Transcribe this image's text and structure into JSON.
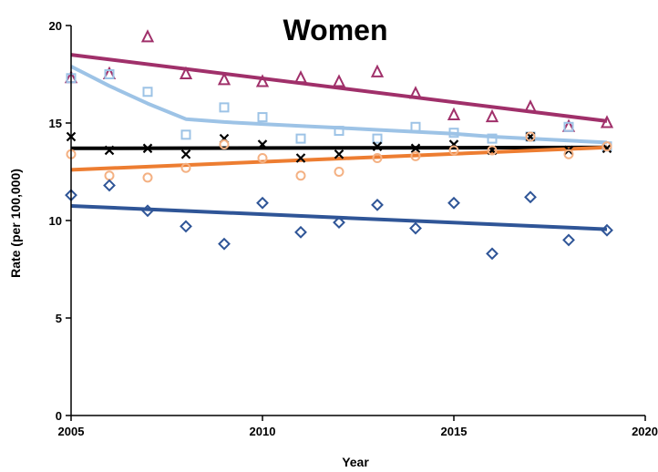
{
  "chart_data": {
    "type": "scatter",
    "title": "Women",
    "xlabel": "Year",
    "ylabel": "Rate (per 100,000)",
    "xlim": [
      2005,
      2020
    ],
    "ylim": [
      0,
      20
    ],
    "xticks": [
      2005,
      2010,
      2015,
      2020
    ],
    "yticks": [
      0,
      5,
      10,
      15,
      20
    ],
    "grid": false,
    "legend": "none",
    "x": [
      2005,
      2006,
      2007,
      2008,
      2009,
      2010,
      2011,
      2012,
      2013,
      2014,
      2015,
      2016,
      2017,
      2018,
      2019
    ],
    "series": [
      {
        "marker": "triangle",
        "color": "#A0306A",
        "values": [
          17.3,
          17.5,
          19.4,
          17.5,
          17.2,
          17.1,
          17.3,
          17.1,
          17.6,
          16.5,
          15.4,
          15.3,
          15.8,
          14.8,
          15.0
        ],
        "trend": {
          "x": [
            2005,
            2019
          ],
          "y": [
            18.5,
            15.1
          ]
        }
      },
      {
        "marker": "square",
        "color": "#9DC3E6",
        "values": [
          17.3,
          17.5,
          16.6,
          14.4,
          15.8,
          15.3,
          14.2,
          14.6,
          14.2,
          14.8,
          14.5,
          14.2,
          14.3,
          14.8,
          13.8
        ],
        "trend": {
          "x": [
            2005,
            2006,
            2007,
            2008,
            2009,
            2010,
            2011,
            2012,
            2013,
            2014,
            2015,
            2016,
            2017,
            2018,
            2019
          ],
          "y": [
            17.9,
            16.9,
            16.0,
            15.2,
            15.05,
            14.95,
            14.85,
            14.75,
            14.65,
            14.55,
            14.45,
            14.3,
            14.2,
            14.1,
            14.0
          ]
        }
      },
      {
        "marker": "x",
        "color": "#000000",
        "values": [
          14.3,
          13.6,
          13.7,
          13.4,
          14.2,
          13.9,
          13.2,
          13.4,
          13.8,
          13.7,
          13.9,
          13.6,
          14.3,
          13.6,
          13.7
        ],
        "trend": {
          "x": [
            2005,
            2019
          ],
          "y": [
            13.7,
            13.75
          ]
        }
      },
      {
        "marker": "circle",
        "color": "#F4B183",
        "values": [
          13.4,
          12.3,
          12.2,
          12.7,
          13.9,
          13.2,
          12.3,
          12.5,
          13.2,
          13.3,
          13.6,
          13.6,
          14.3,
          13.4,
          13.8
        ],
        "trend": {
          "x": [
            2005,
            2019
          ],
          "y": [
            12.6,
            13.75
          ]
        },
        "trend_color": "#ED7D31"
      },
      {
        "marker": "diamond",
        "color": "#2F5597",
        "values": [
          11.3,
          11.8,
          10.5,
          9.7,
          8.8,
          10.9,
          9.4,
          9.9,
          10.8,
          9.6,
          10.9,
          8.3,
          11.2,
          9.0,
          9.5
        ],
        "trend": {
          "x": [
            2005,
            2019
          ],
          "y": [
            10.75,
            9.55
          ]
        }
      }
    ]
  }
}
